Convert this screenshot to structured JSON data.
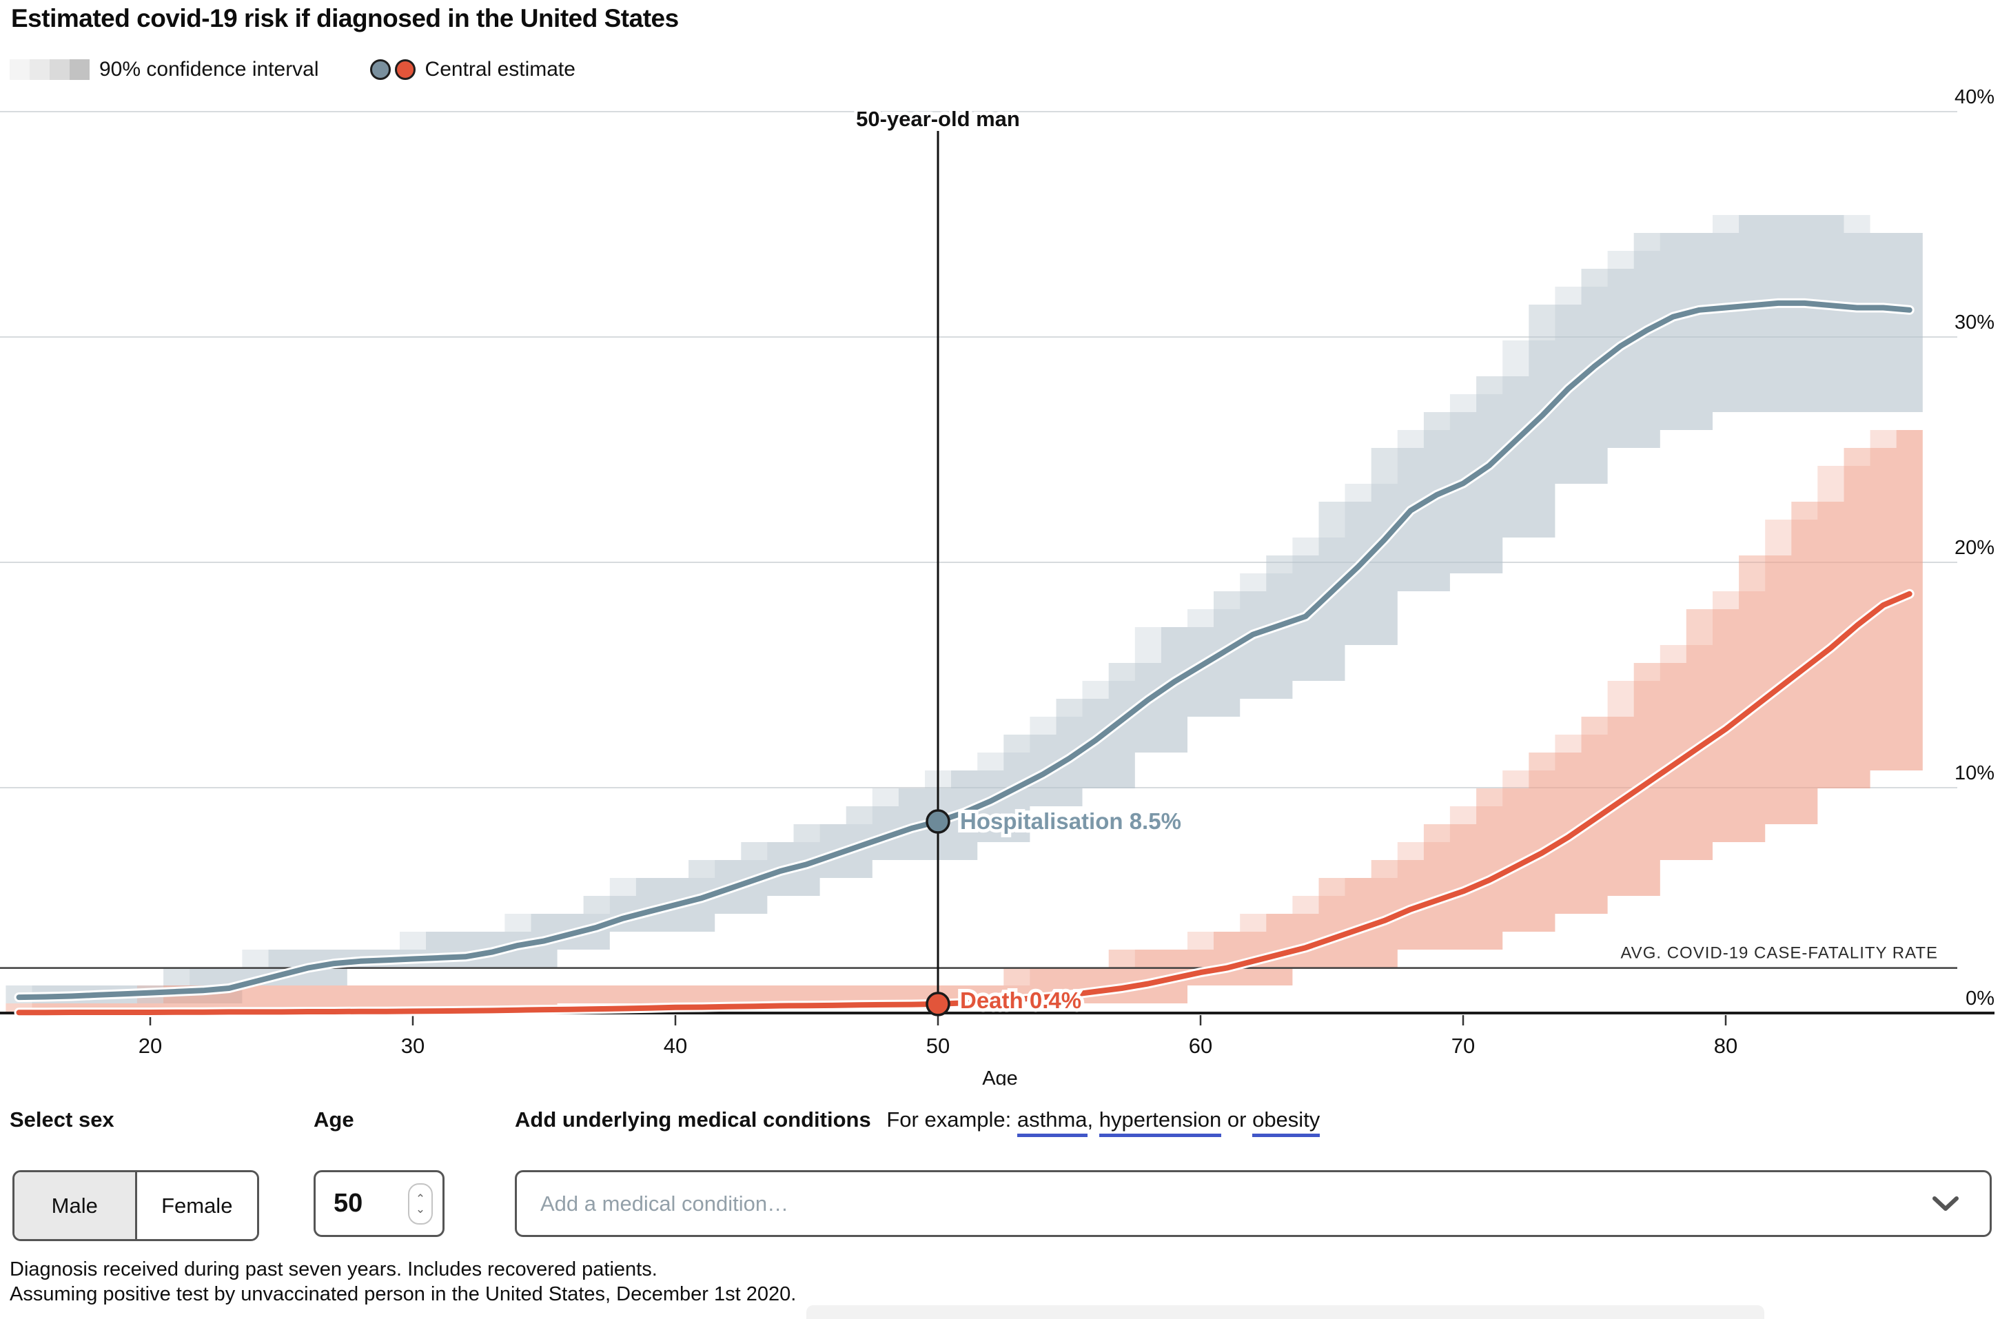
{
  "header": {
    "title": "Estimated covid-19 risk if diagnosed in the United States",
    "legend": {
      "ci_label": "90% confidence interval",
      "central_label": "Central estimate",
      "ci_swatch_colors": [
        "#f4f4f4",
        "#eaeaea",
        "#dadada",
        "#c2c2c2"
      ],
      "central_colors": [
        "#7a909e",
        "#e2553a"
      ]
    }
  },
  "chart_data": {
    "type": "line",
    "title": "Estimated covid-19 risk if diagnosed in the United States",
    "xlabel": "Age",
    "ylabel": "",
    "xlim": [
      15,
      87
    ],
    "ylim": [
      0,
      40
    ],
    "x_ticks": [
      20,
      30,
      40,
      50,
      60,
      70,
      80
    ],
    "y_ticks": [
      0,
      10,
      20,
      30,
      40
    ],
    "y_tick_suffix": "%",
    "grid": "horizontal",
    "legend_position": "top-left",
    "x": [
      15,
      16,
      17,
      18,
      19,
      20,
      21,
      22,
      23,
      24,
      25,
      26,
      27,
      28,
      29,
      30,
      31,
      32,
      33,
      34,
      35,
      36,
      37,
      38,
      39,
      40,
      41,
      42,
      43,
      44,
      45,
      46,
      47,
      48,
      49,
      50,
      51,
      52,
      53,
      54,
      55,
      56,
      57,
      58,
      59,
      60,
      61,
      62,
      63,
      64,
      65,
      66,
      67,
      68,
      69,
      70,
      71,
      72,
      73,
      74,
      75,
      76,
      77,
      78,
      79,
      80,
      81,
      82,
      83,
      84,
      85,
      86,
      87
    ],
    "series": [
      {
        "name": "Hospitalisation",
        "color": "#6d8a99",
        "label_color": "#7b97a8",
        "band_color": "#b6c4cc",
        "values": [
          0.7,
          0.72,
          0.75,
          0.8,
          0.85,
          0.9,
          0.95,
          1.0,
          1.1,
          1.4,
          1.7,
          2.0,
          2.2,
          2.3,
          2.35,
          2.4,
          2.45,
          2.5,
          2.7,
          3.0,
          3.2,
          3.5,
          3.8,
          4.2,
          4.5,
          4.8,
          5.1,
          5.5,
          5.9,
          6.3,
          6.6,
          7.0,
          7.4,
          7.8,
          8.2,
          8.5,
          8.9,
          9.4,
          10.0,
          10.6,
          11.3,
          12.1,
          13.0,
          13.9,
          14.7,
          15.4,
          16.1,
          16.8,
          17.2,
          17.6,
          18.7,
          19.8,
          21.0,
          22.3,
          23.0,
          23.5,
          24.3,
          25.4,
          26.5,
          27.7,
          28.7,
          29.6,
          30.3,
          30.9,
          31.2,
          31.3,
          31.4,
          31.5,
          31.5,
          31.4,
          31.3,
          31.3,
          31.2
        ],
        "ci_low": [
          0.4,
          0.4,
          0.4,
          0.4,
          0.5,
          0.5,
          0.6,
          0.6,
          0.7,
          0.9,
          1.2,
          1.5,
          1.6,
          1.7,
          1.8,
          1.8,
          1.8,
          1.9,
          2.1,
          2.3,
          2.5,
          2.7,
          3.0,
          3.3,
          3.6,
          3.8,
          4.1,
          4.4,
          4.8,
          5.1,
          5.4,
          5.7,
          6.0,
          6.4,
          6.7,
          7.0,
          7.3,
          7.7,
          8.3,
          8.8,
          9.4,
          10.0,
          10.8,
          11.6,
          12.3,
          12.8,
          13.4,
          14.0,
          14.4,
          14.7,
          15.7,
          16.6,
          17.6,
          18.7,
          19.3,
          19.7,
          20.4,
          21.3,
          22.3,
          23.3,
          24.2,
          24.9,
          25.5,
          26.0,
          26.3,
          26.4,
          26.4,
          26.5,
          26.5,
          26.4,
          26.4,
          26.4,
          26.3
        ],
        "ci_high": [
          1.4,
          1.4,
          1.4,
          1.5,
          1.5,
          1.6,
          1.6,
          1.7,
          1.8,
          2.1,
          2.5,
          2.8,
          3.0,
          3.1,
          3.2,
          3.2,
          3.3,
          3.4,
          3.6,
          3.9,
          4.1,
          4.5,
          4.8,
          5.2,
          5.6,
          5.9,
          6.2,
          6.7,
          7.1,
          7.5,
          7.9,
          8.3,
          8.7,
          9.2,
          9.6,
          10.0,
          10.4,
          10.9,
          11.6,
          12.3,
          13.0,
          13.9,
          14.9,
          15.9,
          16.8,
          17.5,
          18.3,
          19.1,
          19.5,
          20.0,
          21.2,
          22.4,
          23.7,
          25.1,
          25.9,
          26.5,
          27.3,
          28.5,
          29.8,
          31.1,
          32.2,
          33.2,
          33.9,
          34.6,
          34.9,
          35.0,
          35.1,
          35.3,
          35.3,
          35.1,
          35.0,
          35.0,
          34.9
        ]
      },
      {
        "name": "Death",
        "color": "#e2553a",
        "label_color": "#e2553a",
        "band_color": "#efA08a",
        "values": [
          0.02,
          0.02,
          0.03,
          0.03,
          0.03,
          0.03,
          0.04,
          0.04,
          0.05,
          0.05,
          0.05,
          0.06,
          0.06,
          0.07,
          0.07,
          0.08,
          0.09,
          0.1,
          0.11,
          0.13,
          0.15,
          0.16,
          0.18,
          0.2,
          0.22,
          0.25,
          0.26,
          0.28,
          0.3,
          0.32,
          0.33,
          0.34,
          0.36,
          0.37,
          0.38,
          0.4,
          0.45,
          0.5,
          0.6,
          0.7,
          0.8,
          0.95,
          1.1,
          1.3,
          1.55,
          1.8,
          2.0,
          2.3,
          2.6,
          2.9,
          3.3,
          3.7,
          4.1,
          4.6,
          5.0,
          5.4,
          5.9,
          6.5,
          7.1,
          7.8,
          8.6,
          9.4,
          10.2,
          11.0,
          11.8,
          12.6,
          13.5,
          14.4,
          15.3,
          16.2,
          17.2,
          18.1,
          18.6
        ],
        "ci_low": [
          0.01,
          0.01,
          0.01,
          0.01,
          0.01,
          0.01,
          0.01,
          0.01,
          0.01,
          0.01,
          0.01,
          0.01,
          0.01,
          0.01,
          0.01,
          0.01,
          0.01,
          0.01,
          0.02,
          0.03,
          0.04,
          0.05,
          0.06,
          0.07,
          0.08,
          0.1,
          0.11,
          0.12,
          0.13,
          0.14,
          0.15,
          0.15,
          0.17,
          0.17,
          0.18,
          0.19,
          0.22,
          0.25,
          0.31,
          0.37,
          0.43,
          0.52,
          0.61,
          0.73,
          0.88,
          1.03,
          1.15,
          1.33,
          1.51,
          1.69,
          1.93,
          2.17,
          2.41,
          2.71,
          2.95,
          3.19,
          3.49,
          3.85,
          4.21,
          4.63,
          5.11,
          5.59,
          6.07,
          6.55,
          7.03,
          7.51,
          8.05,
          8.59,
          9.13,
          9.67,
          10.27,
          10.81,
          11.11
        ],
        "ci_high": [
          0.8,
          0.8,
          0.8,
          0.8,
          0.8,
          0.8,
          0.9,
          0.9,
          0.9,
          0.9,
          0.9,
          0.9,
          0.9,
          0.9,
          0.9,
          0.9,
          0.9,
          0.9,
          0.9,
          1.0,
          1.0,
          1.0,
          1.0,
          1.1,
          1.1,
          1.1,
          1.2,
          1.2,
          1.2,
          1.2,
          1.2,
          1.3,
          1.3,
          1.3,
          1.3,
          1.3,
          1.4,
          1.5,
          1.6,
          1.7,
          1.9,
          2.1,
          2.3,
          2.6,
          2.9,
          3.2,
          3.5,
          3.9,
          4.3,
          4.7,
          5.3,
          5.8,
          6.3,
          7.0,
          7.6,
          8.1,
          8.8,
          9.6,
          10.4,
          11.3,
          12.4,
          13.5,
          14.6,
          15.7,
          16.7,
          17.8,
          19.0,
          20.2,
          21.5,
          22.7,
          24.0,
          25.2,
          25.9
        ]
      }
    ],
    "annotations": {
      "ref_age": 50,
      "ref_label": "50-year-old man",
      "hospitalisation_point_label": "Hospitalisation 8.5%",
      "death_point_label": "Death 0.4%",
      "hospitalisation_at_ref": 8.5,
      "death_at_ref": 0.4,
      "avg_cfr_value": 2.0,
      "avg_cfr_label": "AVG. COVID-19 CASE-FATALITY RATE"
    }
  },
  "controls": {
    "sex": {
      "heading": "Select sex",
      "options": [
        "Male",
        "Female"
      ],
      "selected": "Male"
    },
    "age": {
      "heading": "Age",
      "value": "50"
    },
    "conditions": {
      "heading": "Add underlying medical conditions",
      "example_prefix": "For example: ",
      "example_links": [
        "asthma",
        "hypertension",
        "obesity"
      ],
      "example_sep1": ", ",
      "example_sep2": " or ",
      "placeholder": "Add a medical condition…",
      "link_color": "#4056c8"
    }
  },
  "footnotes": {
    "line1": "Diagnosis received during past seven years. Includes recovered patients.",
    "line2": "Assuming positive test by unvaccinated person in the United States, December 1st 2020."
  }
}
